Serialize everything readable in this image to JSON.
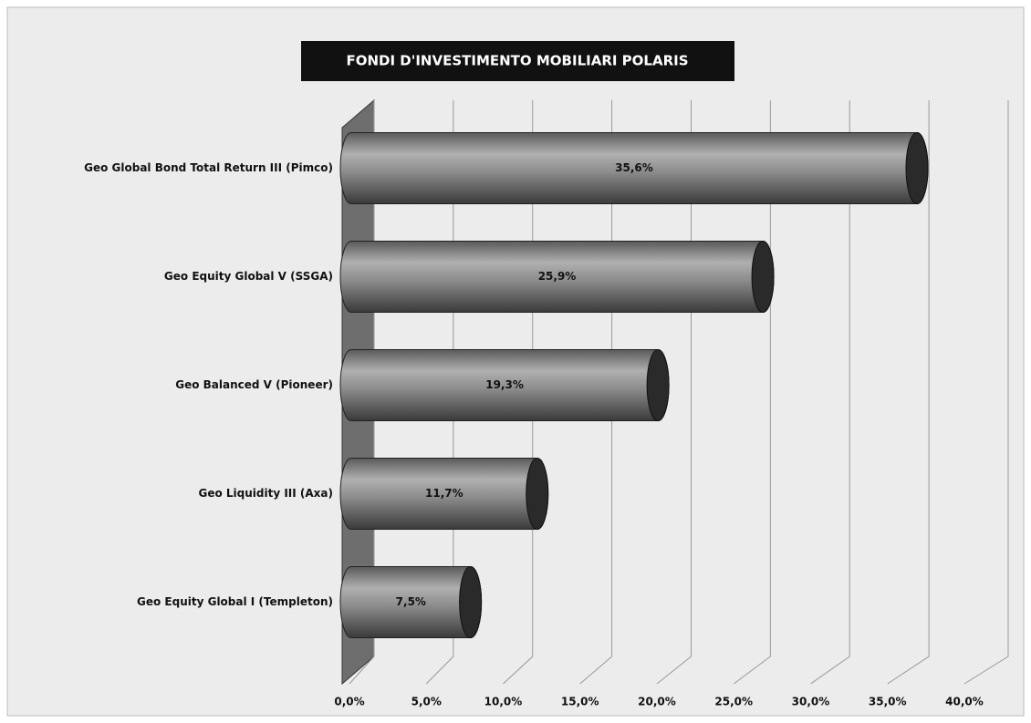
{
  "chart_data": {
    "type": "bar",
    "orientation": "horizontal",
    "title": "FONDI D'INVESTIMENTO  MOBILIARI POLARIS",
    "categories": [
      "Geo Global Bond Total Return III (Pimco)",
      "Geo Equity Global V (SSGA)",
      "Geo Balanced V (Pioneer)",
      "Geo Liquidity III (Axa)",
      "Geo Equity Global I (Templeton)"
    ],
    "values": [
      35.6,
      25.9,
      19.3,
      11.7,
      7.5
    ],
    "value_labels": [
      "35,6%",
      "25,9%",
      "19,3%",
      "11,7%",
      "7,5%"
    ],
    "color": "#8c8c8c",
    "xlim": [
      0,
      40
    ],
    "xticks": [
      {
        "value": 0,
        "label": "0,0%"
      },
      {
        "value": 5,
        "label": "5,0%"
      },
      {
        "value": 10,
        "label": "10,0%"
      },
      {
        "value": 15,
        "label": "15,0%"
      },
      {
        "value": 20,
        "label": "20,0%"
      },
      {
        "value": 25,
        "label": "25,0%"
      },
      {
        "value": 30,
        "label": "30,0%"
      },
      {
        "value": 35,
        "label": "35,0%"
      },
      {
        "value": 40,
        "label": "40,0%"
      }
    ],
    "grid": true
  }
}
